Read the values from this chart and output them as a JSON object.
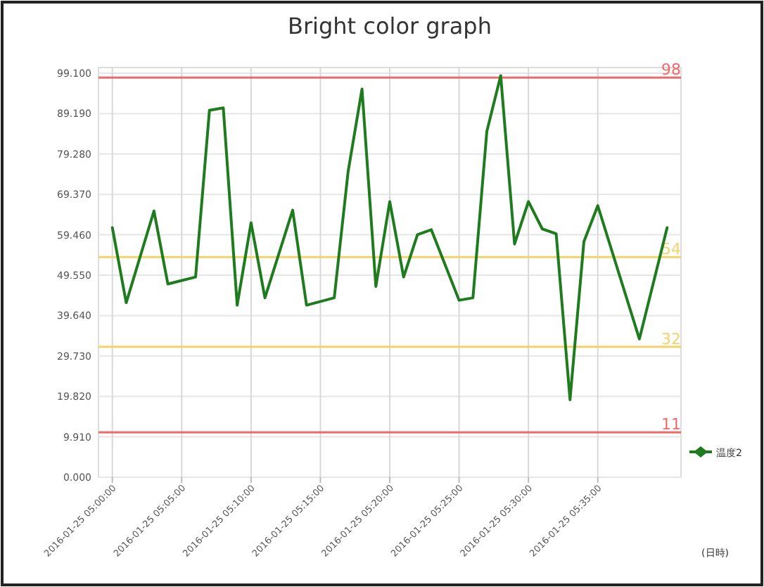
{
  "chart_data": {
    "type": "line",
    "title": "Bright color graph",
    "xlabel": "(日時)",
    "x": [
      "2016-01-25T05:00",
      "2016-01-25T05:01",
      "2016-01-25T05:03",
      "2016-01-25T05:04",
      "2016-01-25T05:06",
      "2016-01-25T05:07",
      "2016-01-25T05:08",
      "2016-01-25T05:09",
      "2016-01-25T05:10",
      "2016-01-25T05:11",
      "2016-01-25T05:13",
      "2016-01-25T05:14",
      "2016-01-25T05:16",
      "2016-01-25T05:17",
      "2016-01-25T05:18",
      "2016-01-25T05:19",
      "2016-01-25T05:20",
      "2016-01-25T05:21",
      "2016-01-25T05:22",
      "2016-01-25T05:23",
      "2016-01-25T05:25",
      "2016-01-25T05:26",
      "2016-01-25T05:27",
      "2016-01-25T05:28",
      "2016-01-25T05:29",
      "2016-01-25T05:30",
      "2016-01-25T05:31",
      "2016-01-25T05:32",
      "2016-01-25T05:33",
      "2016-01-25T05:34",
      "2016-01-25T05:35",
      "2016-01-25T05:38",
      "2016-01-25T05:40"
    ],
    "series": [
      {
        "name": "温度2",
        "color": "#1e7b1e",
        "values": [
          61.2,
          42.8,
          65.3,
          47.4,
          49.1,
          90.0,
          90.6,
          42.2,
          62.4,
          44.0,
          65.5,
          42.2,
          44.0,
          75.0,
          95.2,
          46.8,
          67.6,
          49.1,
          59.5,
          60.7,
          43.4,
          44.0,
          84.8,
          98.5,
          57.2,
          67.6,
          60.9,
          59.7,
          19.0,
          57.8,
          66.6,
          33.9,
          61.2
        ]
      }
    ],
    "xlim": [
      "2016-01-25T04:59",
      "2016-01-25T05:41"
    ],
    "xticks": [
      {
        "value": "2016-01-25T05:00",
        "label": "2016-01-25 05:00:00"
      },
      {
        "value": "2016-01-25T05:05",
        "label": "2016-01-25 05:05:00"
      },
      {
        "value": "2016-01-25T05:10",
        "label": "2016-01-25 05:10:00"
      },
      {
        "value": "2016-01-25T05:15",
        "label": "2016-01-25 05:15:00"
      },
      {
        "value": "2016-01-25T05:20",
        "label": "2016-01-25 05:20:00"
      },
      {
        "value": "2016-01-25T05:25",
        "label": "2016-01-25 05:25:00"
      },
      {
        "value": "2016-01-25T05:30",
        "label": "2016-01-25 05:30:00"
      },
      {
        "value": "2016-01-25T05:35",
        "label": "2016-01-25 05:35:00"
      }
    ],
    "ylim": [
      0,
      99.1
    ],
    "yticks": [
      {
        "value": 0,
        "label": "0.000"
      },
      {
        "value": 9.91,
        "label": "9.910"
      },
      {
        "value": 19.82,
        "label": "19.820"
      },
      {
        "value": 29.73,
        "label": "29.730"
      },
      {
        "value": 39.64,
        "label": "39.640"
      },
      {
        "value": 49.55,
        "label": "49.550"
      },
      {
        "value": 59.46,
        "label": "59.460"
      },
      {
        "value": 69.37,
        "label": "69.370"
      },
      {
        "value": 79.28,
        "label": "79.280"
      },
      {
        "value": 89.19,
        "label": "89.190"
      },
      {
        "value": 99.1,
        "label": "99.100"
      }
    ],
    "ref_lines": [
      {
        "axis": "y",
        "value": 98,
        "label": "98",
        "color": "#f06a6a"
      },
      {
        "axis": "y",
        "value": 54,
        "label": "54",
        "color": "#f3d36a"
      },
      {
        "axis": "y",
        "value": 32,
        "label": "32",
        "color": "#f3d36a"
      },
      {
        "axis": "y",
        "value": 11,
        "label": "11",
        "color": "#f06a6a"
      }
    ],
    "grid": true,
    "legend": "right",
    "marker": "none",
    "line_style": "solid"
  }
}
